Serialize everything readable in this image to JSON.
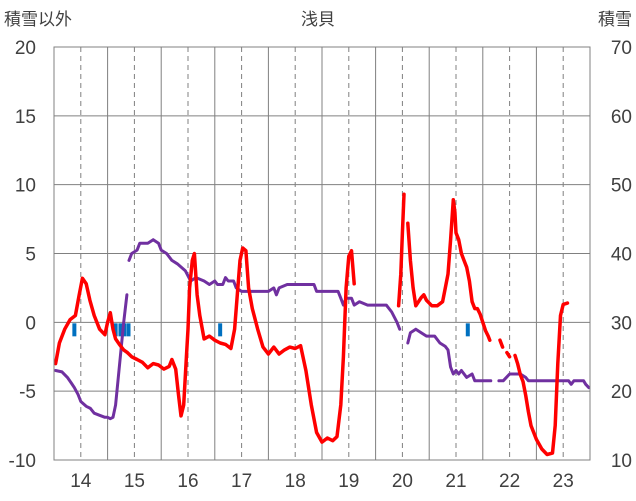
{
  "chart_data": {
    "type": "line",
    "title": "浅貝",
    "left_axis_label": "積雪以外",
    "right_axis_label": "積雪",
    "ylim_left": [
      -10,
      20
    ],
    "ylim_right": [
      10,
      70
    ],
    "yticks_left": [
      "20",
      "15",
      "10",
      "5",
      "0",
      "-5",
      "-10"
    ],
    "yticks_right": [
      "70",
      "60",
      "50",
      "40",
      "30",
      "20",
      "10"
    ],
    "xlim": [
      13.5,
      23.5
    ],
    "xticks": [
      {
        "v": 14,
        "label": "14"
      },
      {
        "v": 15,
        "label": "15"
      },
      {
        "v": 16,
        "label": "16"
      },
      {
        "v": 17,
        "label": "17"
      },
      {
        "v": 18,
        "label": "18"
      },
      {
        "v": 19,
        "label": "19"
      },
      {
        "v": 20,
        "label": "20"
      },
      {
        "v": 21,
        "label": "21"
      },
      {
        "v": 22,
        "label": "22"
      },
      {
        "v": 23,
        "label": "23"
      }
    ],
    "grid": true,
    "colors": {
      "temperature": "#ff0000",
      "snow_depth": "#7030a0",
      "precipitation": "#0070c0",
      "grid": "#808080"
    },
    "temperature": [
      [
        [
          13.53,
          -3.0
        ],
        [
          13.6,
          -1.5
        ],
        [
          13.7,
          -0.5
        ],
        [
          13.8,
          0.2
        ],
        [
          13.9,
          0.5
        ],
        [
          13.97,
          2.0
        ],
        [
          14.03,
          3.2
        ],
        [
          14.1,
          2.8
        ],
        [
          14.17,
          1.6
        ],
        [
          14.25,
          0.5
        ],
        [
          14.35,
          -0.5
        ],
        [
          14.45,
          -0.9
        ],
        [
          14.5,
          0.0
        ],
        [
          14.55,
          0.7
        ],
        [
          14.6,
          -0.5
        ],
        [
          14.65,
          -1.2
        ],
        [
          14.72,
          -1.6
        ],
        [
          14.8,
          -2.0
        ],
        [
          14.87,
          -2.2
        ],
        [
          14.95,
          -2.5
        ],
        [
          15.05,
          -2.7
        ],
        [
          15.15,
          -2.9
        ],
        [
          15.25,
          -3.3
        ],
        [
          15.35,
          -3.0
        ],
        [
          15.45,
          -3.1
        ],
        [
          15.55,
          -3.4
        ],
        [
          15.65,
          -3.2
        ],
        [
          15.7,
          -2.7
        ],
        [
          15.77,
          -3.4
        ],
        [
          15.82,
          -5.2
        ],
        [
          15.87,
          -6.8
        ],
        [
          15.92,
          -6.0
        ],
        [
          15.97,
          -2.5
        ],
        [
          16.0,
          -0.5
        ],
        [
          16.03,
          2.5
        ],
        [
          16.08,
          4.5
        ],
        [
          16.12,
          5.0
        ],
        [
          16.17,
          2.0
        ],
        [
          16.22,
          0.5
        ],
        [
          16.3,
          -1.2
        ],
        [
          16.4,
          -1.0
        ],
        [
          16.5,
          -1.3
        ],
        [
          16.6,
          -1.5
        ],
        [
          16.7,
          -1.6
        ],
        [
          16.8,
          -1.9
        ],
        [
          16.87,
          -0.5
        ],
        [
          16.92,
          2.0
        ],
        [
          16.97,
          4.5
        ],
        [
          17.02,
          5.4
        ],
        [
          17.08,
          5.2
        ],
        [
          17.13,
          2.5
        ],
        [
          17.2,
          1.0
        ],
        [
          17.3,
          -0.5
        ],
        [
          17.4,
          -1.8
        ],
        [
          17.5,
          -2.3
        ],
        [
          17.6,
          -1.8
        ],
        [
          17.7,
          -2.3
        ],
        [
          17.8,
          -2.0
        ],
        [
          17.9,
          -1.8
        ],
        [
          18.0,
          -1.9
        ],
        [
          18.1,
          -1.7
        ],
        [
          18.2,
          -3.5
        ],
        [
          18.3,
          -6.0
        ],
        [
          18.4,
          -8.0
        ],
        [
          18.5,
          -8.7
        ],
        [
          18.6,
          -8.4
        ],
        [
          18.7,
          -8.6
        ],
        [
          18.78,
          -8.3
        ],
        [
          18.85,
          -6.0
        ],
        [
          18.9,
          -2.5
        ],
        [
          18.95,
          2.5
        ],
        [
          19.0,
          4.8
        ],
        [
          19.05,
          5.2
        ],
        [
          19.1,
          2.8
        ]
      ],
      [
        [
          19.93,
          1.2
        ],
        [
          19.97,
          3.5
        ],
        [
          20.0,
          6.5
        ],
        [
          20.03,
          9.3
        ]
      ],
      [
        [
          20.1,
          7.2
        ],
        [
          20.15,
          4.5
        ],
        [
          20.2,
          2.5
        ],
        [
          20.25,
          1.2
        ],
        [
          20.3,
          1.5
        ],
        [
          20.35,
          1.8
        ],
        [
          20.4,
          2.0
        ],
        [
          20.45,
          1.6
        ],
        [
          20.55,
          1.2
        ],
        [
          20.65,
          1.2
        ],
        [
          20.75,
          1.5
        ],
        [
          20.8,
          2.5
        ],
        [
          20.85,
          3.5
        ],
        [
          20.9,
          6.0
        ],
        [
          20.95,
          8.9
        ],
        [
          20.98,
          8.0
        ],
        [
          21.0,
          6.5
        ],
        [
          21.05,
          6.0
        ],
        [
          21.1,
          5.0
        ],
        [
          21.15,
          4.5
        ],
        [
          21.2,
          4.0
        ],
        [
          21.25,
          3.0
        ],
        [
          21.3,
          1.5
        ],
        [
          21.35,
          1.0
        ],
        [
          21.4,
          1.0
        ],
        [
          21.45,
          0.6
        ],
        [
          21.5,
          0.0
        ],
        [
          21.55,
          -0.6
        ],
        [
          21.6,
          -1.0
        ],
        [
          21.63,
          -1.3
        ]
      ],
      [
        [
          21.82,
          -1.3
        ],
        [
          21.87,
          -1.8
        ]
      ],
      [
        [
          21.95,
          -2.2
        ],
        [
          22.0,
          -2.5
        ]
      ],
      [
        [
          22.1,
          -2.4
        ],
        [
          22.15,
          -3.0
        ],
        [
          22.2,
          -3.8
        ],
        [
          22.25,
          -4.3
        ],
        [
          22.3,
          -5.3
        ],
        [
          22.35,
          -6.5
        ],
        [
          22.4,
          -7.5
        ],
        [
          22.5,
          -8.5
        ],
        [
          22.6,
          -9.2
        ],
        [
          22.7,
          -9.6
        ],
        [
          22.8,
          -9.5
        ],
        [
          22.85,
          -7.5
        ],
        [
          22.9,
          -3.0
        ],
        [
          22.95,
          0.5
        ],
        [
          23.0,
          1.3
        ],
        [
          23.08,
          1.4
        ]
      ]
    ],
    "snow_depth": [
      [
        [
          13.53,
          23.0
        ],
        [
          13.65,
          22.8
        ],
        [
          13.75,
          22.0
        ],
        [
          13.82,
          21.2
        ],
        [
          13.88,
          20.5
        ],
        [
          13.95,
          19.5
        ],
        [
          14.0,
          18.5
        ],
        [
          14.1,
          17.8
        ],
        [
          14.18,
          17.5
        ],
        [
          14.25,
          16.8
        ],
        [
          14.35,
          16.5
        ],
        [
          14.45,
          16.2
        ],
        [
          14.5,
          16.2
        ],
        [
          14.55,
          16.0
        ],
        [
          14.6,
          16.2
        ],
        [
          14.65,
          18.0
        ],
        [
          14.7,
          22.0
        ],
        [
          14.75,
          26.0
        ],
        [
          14.8,
          30.0
        ],
        [
          14.83,
          32.0
        ],
        [
          14.86,
          34.0
        ]
      ],
      [
        [
          14.9,
          39.0
        ],
        [
          14.95,
          40.0
        ],
        [
          15.05,
          40.5
        ],
        [
          15.1,
          41.5
        ],
        [
          15.25,
          41.5
        ],
        [
          15.35,
          42.0
        ],
        [
          15.45,
          41.5
        ],
        [
          15.5,
          40.5
        ],
        [
          15.6,
          40.0
        ],
        [
          15.7,
          39.0
        ],
        [
          15.8,
          38.5
        ],
        [
          15.95,
          37.5
        ],
        [
          16.05,
          36.0
        ],
        [
          16.15,
          36.5
        ],
        [
          16.3,
          36.0
        ],
        [
          16.4,
          35.5
        ],
        [
          16.5,
          36.0
        ],
        [
          16.55,
          35.5
        ],
        [
          16.65,
          35.5
        ],
        [
          16.7,
          36.5
        ],
        [
          16.75,
          36.0
        ],
        [
          16.85,
          36.0
        ],
        [
          16.9,
          35.0
        ],
        [
          17.0,
          34.5
        ],
        [
          17.15,
          34.5
        ],
        [
          17.3,
          34.5
        ],
        [
          17.5,
          34.5
        ],
        [
          17.6,
          35.0
        ],
        [
          17.65,
          34.0
        ],
        [
          17.7,
          35.0
        ],
        [
          17.85,
          35.5
        ],
        [
          18.0,
          35.5
        ],
        [
          18.2,
          35.5
        ],
        [
          18.35,
          35.5
        ],
        [
          18.4,
          34.5
        ],
        [
          18.5,
          34.5
        ],
        [
          18.6,
          34.5
        ],
        [
          18.8,
          34.5
        ],
        [
          18.85,
          33.5
        ],
        [
          18.9,
          32.5
        ],
        [
          18.95,
          33.5
        ],
        [
          19.05,
          33.5
        ],
        [
          19.1,
          32.5
        ],
        [
          19.2,
          33.0
        ],
        [
          19.35,
          32.5
        ],
        [
          19.5,
          32.5
        ],
        [
          19.7,
          32.5
        ],
        [
          19.8,
          31.5
        ],
        [
          19.9,
          30.0
        ],
        [
          19.95,
          29.0
        ]
      ],
      [
        [
          20.1,
          27.0
        ],
        [
          20.15,
          28.5
        ],
        [
          20.25,
          29.0
        ],
        [
          20.35,
          28.5
        ],
        [
          20.45,
          28.0
        ],
        [
          20.6,
          28.0
        ],
        [
          20.7,
          27.0
        ],
        [
          20.8,
          26.5
        ],
        [
          20.85,
          26.0
        ],
        [
          20.9,
          23.5
        ],
        [
          20.95,
          22.5
        ],
        [
          21.0,
          23.0
        ],
        [
          21.05,
          22.5
        ],
        [
          21.1,
          23.0
        ],
        [
          21.2,
          22.0
        ],
        [
          21.3,
          22.5
        ],
        [
          21.35,
          21.5
        ],
        [
          21.5,
          21.5
        ],
        [
          21.65,
          21.5
        ]
      ],
      [
        [
          21.8,
          21.5
        ],
        [
          21.88,
          21.5
        ],
        [
          22.0,
          22.5
        ],
        [
          22.1,
          22.5
        ],
        [
          22.2,
          22.5
        ],
        [
          22.3,
          22.0
        ],
        [
          22.35,
          21.5
        ],
        [
          22.5,
          21.5
        ],
        [
          22.65,
          21.5
        ],
        [
          22.8,
          21.5
        ],
        [
          22.9,
          21.5
        ],
        [
          23.0,
          21.5
        ],
        [
          23.1,
          21.5
        ],
        [
          23.15,
          21.0
        ],
        [
          23.2,
          21.5
        ],
        [
          23.3,
          21.5
        ],
        [
          23.38,
          21.5
        ],
        [
          23.42,
          21.0
        ],
        [
          23.48,
          20.5
        ]
      ]
    ],
    "precipitation": [
      {
        "x": 13.88,
        "value": 1
      },
      {
        "x": 14.65,
        "value": 1
      },
      {
        "x": 14.74,
        "value": 1
      },
      {
        "x": 14.81,
        "value": 1
      },
      {
        "x": 14.89,
        "value": 1
      },
      {
        "x": 16.6,
        "value": 1
      },
      {
        "x": 21.22,
        "value": 1
      }
    ]
  }
}
